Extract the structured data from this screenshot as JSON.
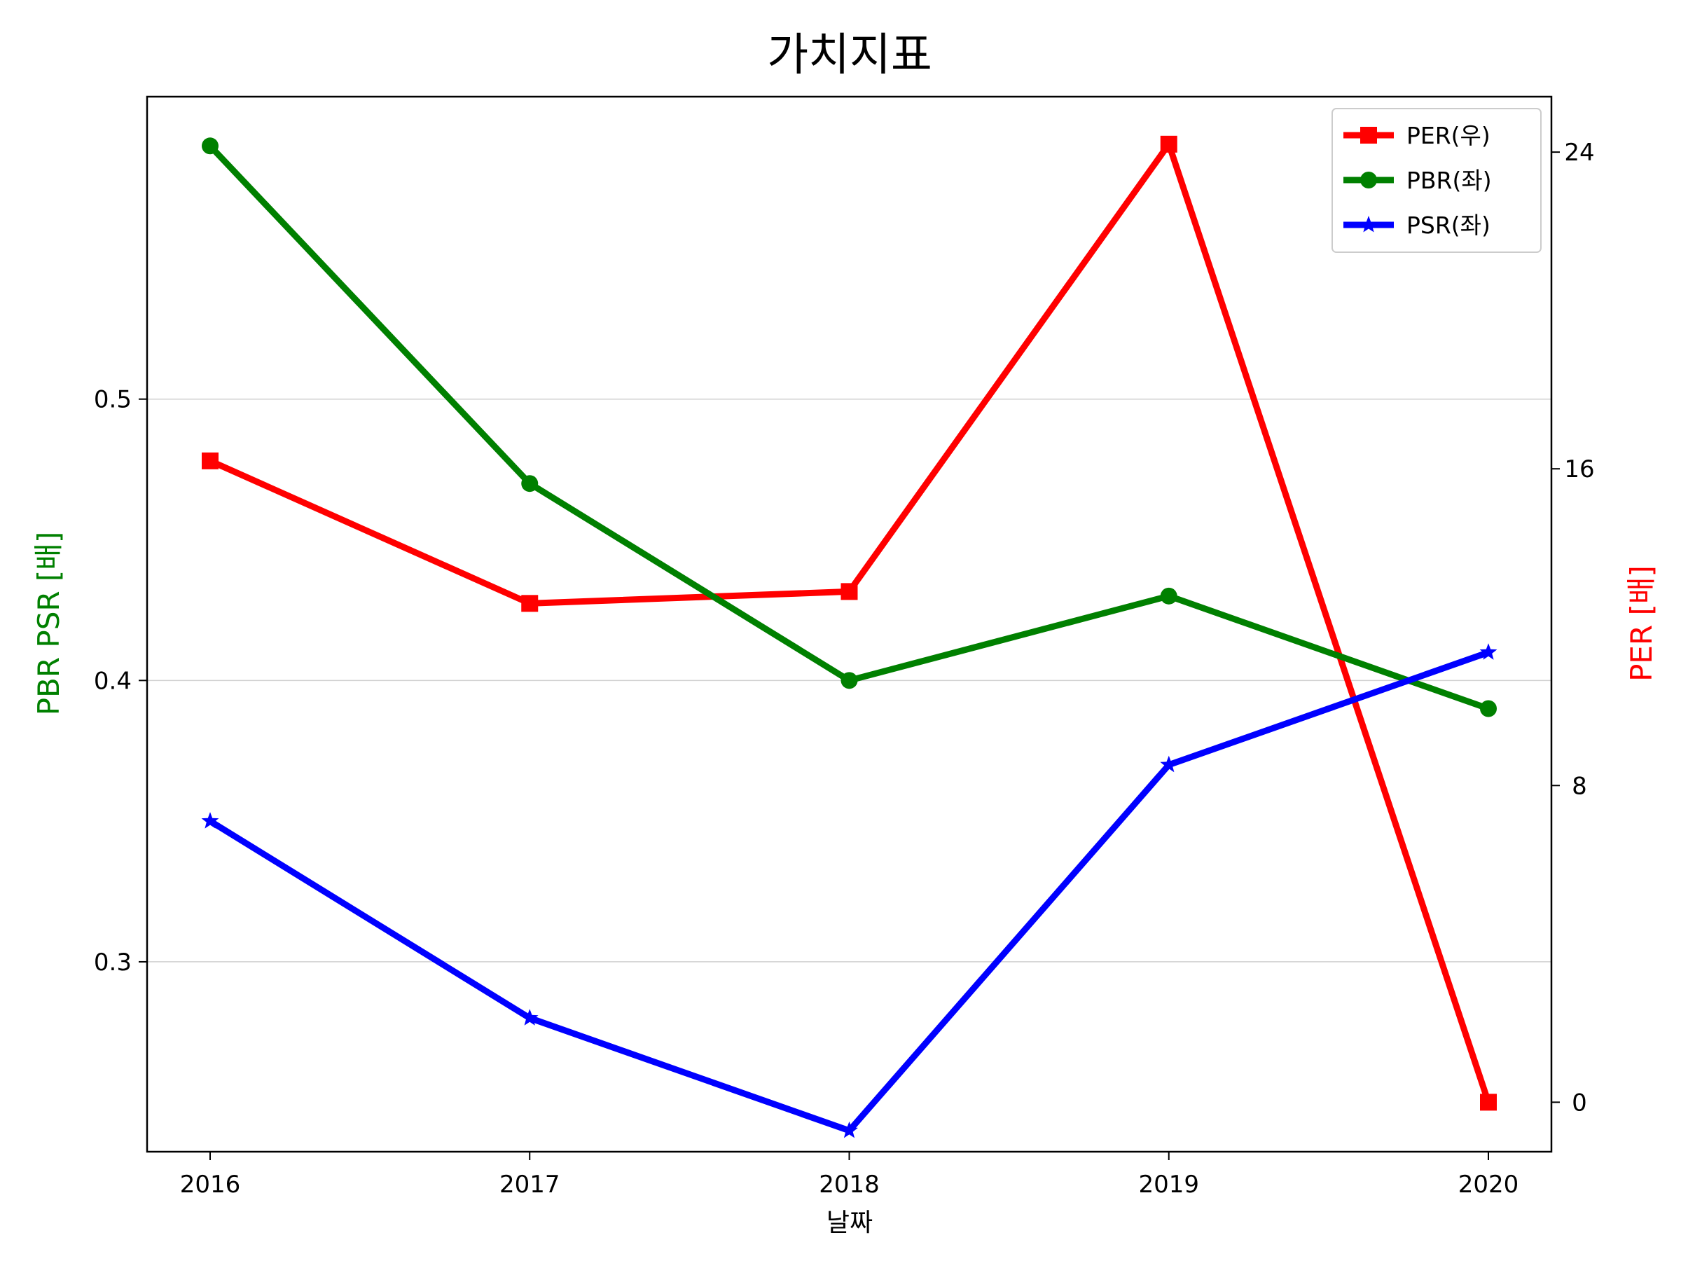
{
  "chart_data": {
    "type": "line",
    "title": "가치지표",
    "xlabel": "날짜",
    "ylabel_left": "PBR PSR [배]",
    "ylabel_right": "PER [배]",
    "categories": [
      "2016",
      "2017",
      "2018",
      "2019",
      "2020"
    ],
    "y_left": {
      "ylim": [
        0.2325,
        0.6075
      ],
      "ticks": [
        0.3,
        0.4,
        0.5
      ],
      "tick_labels": [
        "0.3",
        "0.4",
        "0.5"
      ],
      "grid": true
    },
    "y_right": {
      "ylim": [
        -1.25,
        25.4
      ],
      "ticks": [
        0,
        8,
        16,
        24
      ],
      "tick_labels": [
        "0",
        "8",
        "16",
        "24"
      ],
      "grid": false
    },
    "legend_position": "top-right",
    "series": [
      {
        "name": "PER(우)",
        "axis": "right",
        "color": "#ff0000",
        "marker": "square",
        "values": [
          16.2,
          12.6,
          12.9,
          24.2,
          0.0
        ]
      },
      {
        "name": "PBR(좌)",
        "axis": "left",
        "color": "#008000",
        "marker": "circle",
        "values": [
          0.59,
          0.47,
          0.4,
          0.43,
          0.39
        ]
      },
      {
        "name": "PSR(좌)",
        "axis": "left",
        "color": "#0000ff",
        "marker": "star",
        "values": [
          0.35,
          0.28,
          0.24,
          0.37,
          0.41
        ]
      }
    ]
  }
}
